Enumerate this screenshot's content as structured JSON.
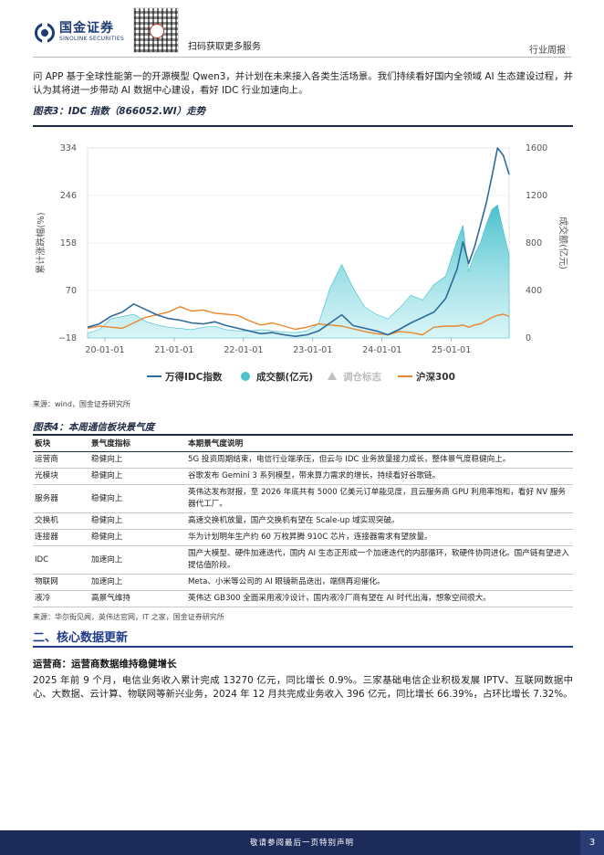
{
  "header": {
    "logo_cn": "国金证券",
    "logo_en": "SINOLINK SECURITIES",
    "qr_caption": "扫码获取更多服务",
    "report_type": "行业周报"
  },
  "intro": "问 APP 基于全球性能第一的开源模型 Qwen3，并计划在未来接入各类生活场景。我们持续看好国内全领域 AI 生态建设过程，并认为其将进一步带动 AI 数据中心建设，看好 IDC 行业加速向上。",
  "fig3": {
    "title": "图表3：IDC 指数（866052.WI）走势",
    "source": "来源：wind，国金证券研究所"
  },
  "chart_data": {
    "type": "line",
    "ylabel": "累计涨跌幅(%)",
    "y2label": "成交额(亿元)",
    "ylim": [
      -18,
      334
    ],
    "y2lim": [
      0,
      1600
    ],
    "yticks": [
      "334",
      "246",
      "158",
      "70",
      "−18"
    ],
    "y2ticks": [
      "1600",
      "1200",
      "800",
      "400",
      "0"
    ],
    "xticks": [
      "20-01-01",
      "21-01-01",
      "22-01-01",
      "23-01-01",
      "24-01-01",
      "25-01-01"
    ],
    "xrange": [
      "2019-10",
      "2025-11"
    ],
    "legend": [
      {
        "name": "万得IDC指数",
        "color": "#2f6a9c",
        "kind": "line"
      },
      {
        "name": "成交额(亿元)",
        "color": "#4cc3cf",
        "kind": "dot"
      },
      {
        "name": "调仓标志",
        "color": "#bfbfbf",
        "kind": "triangle"
      },
      {
        "name": "沪深300",
        "color": "#e8872e",
        "kind": "line"
      }
    ],
    "x": [
      "2019-10",
      "2019-12",
      "2020-02",
      "2020-04",
      "2020-06",
      "2020-08",
      "2020-10",
      "2020-12",
      "2021-02",
      "2021-04",
      "2021-06",
      "2021-08",
      "2021-10",
      "2021-12",
      "2022-02",
      "2022-04",
      "2022-06",
      "2022-08",
      "2022-10",
      "2022-12",
      "2023-02",
      "2023-04",
      "2023-06",
      "2023-08",
      "2023-10",
      "2023-12",
      "2024-02",
      "2024-04",
      "2024-06",
      "2024-08",
      "2024-10",
      "2024-12",
      "2025-02",
      "2025-03",
      "2025-04",
      "2025-05",
      "2025-06",
      "2025-07",
      "2025-08",
      "2025-09",
      "2025-10",
      "2025-11"
    ],
    "series": [
      {
        "name": "万得IDC指数",
        "axis": "left",
        "values": [
          2,
          8,
          22,
          30,
          45,
          35,
          25,
          18,
          15,
          10,
          8,
          12,
          5,
          0,
          -5,
          -10,
          -8,
          -12,
          -15,
          -12,
          -5,
          10,
          25,
          5,
          0,
          -5,
          -12,
          -2,
          10,
          20,
          30,
          55,
          110,
          160,
          120,
          150,
          190,
          230,
          280,
          334,
          320,
          285
        ]
      },
      {
        "name": "成交额(亿元)",
        "axis": "right",
        "values": [
          40,
          70,
          160,
          180,
          200,
          140,
          110,
          90,
          80,
          70,
          90,
          100,
          70,
          60,
          60,
          70,
          60,
          50,
          45,
          60,
          120,
          420,
          620,
          420,
          260,
          200,
          160,
          250,
          360,
          320,
          450,
          520,
          820,
          950,
          560,
          700,
          800,
          950,
          1080,
          1120,
          900,
          700
        ]
      },
      {
        "name": "沪深300",
        "axis": "left",
        "values": [
          0,
          4,
          2,
          0,
          10,
          20,
          25,
          30,
          40,
          32,
          34,
          28,
          26,
          24,
          14,
          6,
          10,
          4,
          -2,
          2,
          8,
          6,
          4,
          -1,
          -6,
          -10,
          -12,
          -6,
          -8,
          -12,
          2,
          4,
          4,
          6,
          2,
          6,
          8,
          14,
          20,
          24,
          26,
          22
        ]
      }
    ]
  },
  "fig4": {
    "title": "图表4：本周通信板块景气度",
    "headers": [
      "板块",
      "景气度指标",
      "本期景气度说明"
    ],
    "rows": [
      [
        "运营商",
        "稳健向上",
        "5G 投资周期结束，电信行业端承压，但云与 IDC 业务放量接力成长，整体景气度稳健向上。"
      ],
      [
        "光模块",
        "稳健向上",
        "谷歌发布 Gemini 3 系列模型，带来算力需求的增长，持续看好谷歌链。"
      ],
      [
        "服务器",
        "稳健向上",
        "英伟达发布财报，至 2026 年底共有 5000 亿美元订单能见度，且云服务商 GPU 利用率饱和，看好 NV 服务器代工厂。"
      ],
      [
        "交换机",
        "稳健向上",
        "高速交换机放量，国产交换机有望在 Scale-up 域实现突破。"
      ],
      [
        "连接器",
        "稳健向上",
        "华为计划明年生产约 60 万枚昇腾 910C 芯片，连接器需求有望放量。"
      ],
      [
        "IDC",
        "加速向上",
        "国产大模型、硬件加速迭代，国内 AI 生态正形成一个加速迭代的内部循环，软硬件协同进化。国产链有望进入提估值阶段。"
      ],
      [
        "物联网",
        "加速向上",
        "Meta、小米等公司的 AI 眼镜新品迭出，端侧再迎催化。"
      ],
      [
        "液冷",
        "高景气维持",
        "英伟达 GB300 全面采用液冷设计，国内液冷厂商有望在 AI 时代出海，想象空间很大。"
      ]
    ],
    "source": "来源：华尔街见闻，英伟达官网，IT 之家，国金证券研究所"
  },
  "section_title": "二、核心数据更新",
  "sub_title": "运营商：运营商数据维持稳健增长",
  "para2": "2025 年前 9 个月，电信业务收入累计完成 13270 亿元，同比增长 0.9%。三家基础电信企业积极发展 IPTV、互联网数据中心、大数据、云计算、物联网等新兴业务，2024 年 12 月共完成业务收入 396 亿元，同比增长 66.39%，占环比增长 7.32%。",
  "footer": {
    "text": "敬请参阅最后一页特别声明",
    "page": "3"
  }
}
